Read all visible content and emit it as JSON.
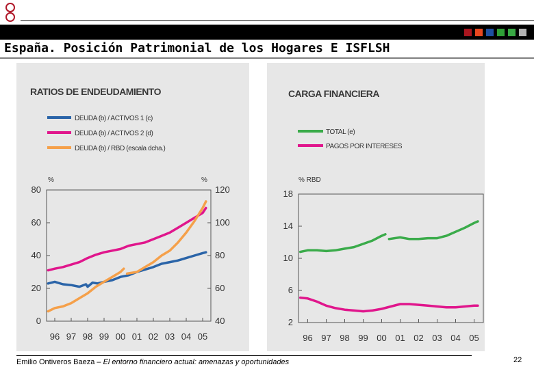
{
  "header": {
    "title": "España. Posición Patrimonial de los Hogares E ISFLSH",
    "color_squares": [
      "#a8151e",
      "#e8471f",
      "#1e4fa1",
      "#2f9e36",
      "#39a844",
      "#b3b3b3"
    ]
  },
  "footer": {
    "author": "Emilio Ontiveros Baeza – ",
    "book": "El entorno financiero actual: amenazas y oportunidades",
    "page": "22"
  },
  "chart_data": [
    {
      "type": "line",
      "title": "RATIOS DE ENDEUDAMIENTO",
      "ylabel_left": "%",
      "ylabel_right": "%",
      "ylim_left": [
        0,
        80
      ],
      "ylim_right": [
        40,
        120
      ],
      "yticks_left": [
        "80",
        "60",
        "40",
        "20",
        "0"
      ],
      "yticks_right": [
        "120",
        "100",
        "80",
        "60",
        "40"
      ],
      "xlim": [
        1995.5,
        2005.5
      ],
      "xticks": [
        "96",
        "97",
        "98",
        "99",
        "00",
        "01",
        "02",
        "03",
        "04",
        "05"
      ],
      "series": [
        {
          "name": "DEUDA (b) / ACTIVOS 1 (c)",
          "color": "#2a64a8",
          "axis": "left",
          "x": [
            1995.6,
            1996,
            1996.5,
            1997,
            1997.5,
            1997.9,
            1998,
            1998.3,
            1998.6,
            1999,
            1999.5,
            2000,
            2000.5,
            2001,
            2001.5,
            2002,
            2002.5,
            2003,
            2003.5,
            2004,
            2004.5,
            2005,
            2005.2
          ],
          "y": [
            23,
            24,
            22.5,
            22,
            21,
            22.5,
            21,
            23.5,
            23,
            24,
            25,
            27,
            28,
            30,
            31.5,
            33,
            35,
            36,
            37,
            38.5,
            40,
            41.5,
            42
          ]
        },
        {
          "name": "DEUDA (b) / ACTIVOS 2 (d)",
          "color": "#e0168c",
          "axis": "left",
          "x": [
            1995.6,
            1996,
            1996.5,
            1997,
            1997.5,
            1998,
            1998.5,
            1999,
            1999.5,
            2000,
            2000.5,
            2001,
            2001.5,
            2002,
            2002.5,
            2003,
            2003.5,
            2004,
            2004.5,
            2005,
            2005.2
          ],
          "y": [
            31,
            32,
            33,
            34.5,
            36,
            38.5,
            40.5,
            42,
            43,
            44,
            46,
            47,
            48,
            50,
            52,
            54,
            57,
            60,
            63,
            66,
            69
          ]
        },
        {
          "name": "DEUDA (b) / RBD (escala dcha.)",
          "color": "#f5a04a",
          "axis": "right",
          "segments": [
            {
              "x": [
                1995.6,
                1996,
                1996.5,
                1997,
                1997.5,
                1998,
                1998.5,
                1999,
                1999.5,
                2000,
                2000.2
              ],
              "y": [
                46,
                48,
                49,
                51,
                54,
                57,
                61,
                64,
                67,
                70,
                72
              ]
            },
            {
              "x": [
                2000.4,
                2001,
                2001.5,
                2002,
                2002.5,
                2003,
                2003.5,
                2004,
                2004.5,
                2005,
                2005.2
              ],
              "y": [
                69,
                70,
                73,
                76,
                80,
                83,
                88,
                94,
                101,
                109,
                113
              ]
            }
          ]
        }
      ]
    },
    {
      "type": "line",
      "title": "CARGA FINANCIERA",
      "ylabel": "% RBD",
      "ylim": [
        2,
        18
      ],
      "yticks": [
        "18",
        "14",
        "10",
        "6",
        "2"
      ],
      "xlim": [
        1995.5,
        2005.5
      ],
      "xticks": [
        "96",
        "97",
        "98",
        "99",
        "00",
        "01",
        "02",
        "03",
        "04",
        "05"
      ],
      "series": [
        {
          "name": "TOTAL (e)",
          "color": "#3aab4a",
          "segments": [
            {
              "x": [
                1995.6,
                1996,
                1996.5,
                1997,
                1997.5,
                1998,
                1998.5,
                1999,
                1999.5,
                2000,
                2000.2
              ],
              "y": [
                10.8,
                11,
                11,
                10.9,
                11,
                11.2,
                11.4,
                11.8,
                12.2,
                12.8,
                13
              ]
            },
            {
              "x": [
                2000.4,
                2001,
                2001.5,
                2002,
                2002.5,
                2003,
                2003.5,
                2004,
                2004.5,
                2005,
                2005.2
              ],
              "y": [
                12.4,
                12.6,
                12.4,
                12.4,
                12.5,
                12.5,
                12.8,
                13.3,
                13.8,
                14.4,
                14.6
              ]
            }
          ]
        },
        {
          "name": "PAGOS POR INTERESES",
          "color": "#e0168c",
          "x": [
            1995.6,
            1996,
            1996.5,
            1997,
            1997.5,
            1998,
            1998.5,
            1999,
            1999.5,
            2000,
            2000.5,
            2001,
            2001.5,
            2002,
            2002.5,
            2003,
            2003.5,
            2004,
            2004.5,
            2005,
            2005.2
          ],
          "y": [
            5.1,
            5,
            4.6,
            4.1,
            3.8,
            3.6,
            3.5,
            3.4,
            3.5,
            3.7,
            4,
            4.3,
            4.3,
            4.2,
            4.1,
            4.0,
            3.9,
            3.9,
            4.0,
            4.1,
            4.1
          ]
        }
      ]
    }
  ]
}
